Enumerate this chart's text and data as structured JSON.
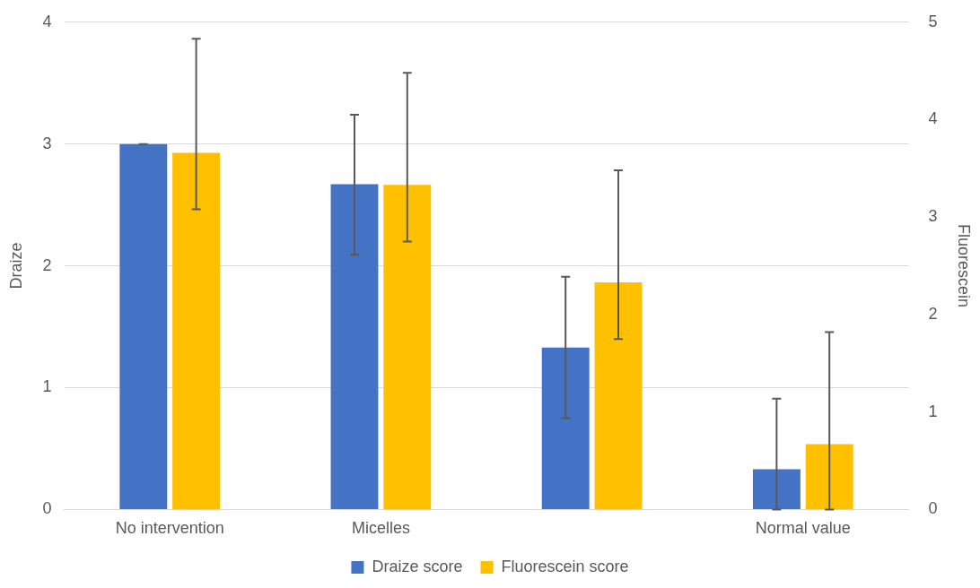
{
  "chart_data": {
    "type": "bar",
    "ylabel": "Draize",
    "y2label": "Fluorescein",
    "categories": [
      "No intervention",
      "Micelles",
      null,
      "Normal value"
    ],
    "series": [
      {
        "name": "Draize score",
        "color": "#4472c4",
        "values": [
          3.0,
          2.67,
          1.33,
          0.33
        ],
        "errors": [
          [
            3.0,
            3.0
          ],
          [
            2.09,
            3.24
          ],
          [
            0.75,
            1.91
          ],
          [
            0,
            0.91
          ]
        ]
      },
      {
        "name": "Fluorescein score",
        "color": "#ffc000",
        "axis": "y2",
        "values": [
          3.66,
          3.33,
          2.33,
          0.67
        ],
        "errors": [
          [
            3.08,
            4.83
          ],
          [
            2.75,
            4.48
          ],
          [
            1.75,
            3.48
          ],
          [
            0,
            1.82
          ]
        ]
      }
    ],
    "ylim": [
      0,
      4
    ],
    "yticks": [
      0,
      1,
      2,
      3,
      4
    ],
    "y2lim": [
      0,
      5
    ],
    "y2ticks": [
      0,
      1,
      2,
      3,
      4,
      5
    ],
    "grid": "y",
    "legend": "bottom"
  }
}
